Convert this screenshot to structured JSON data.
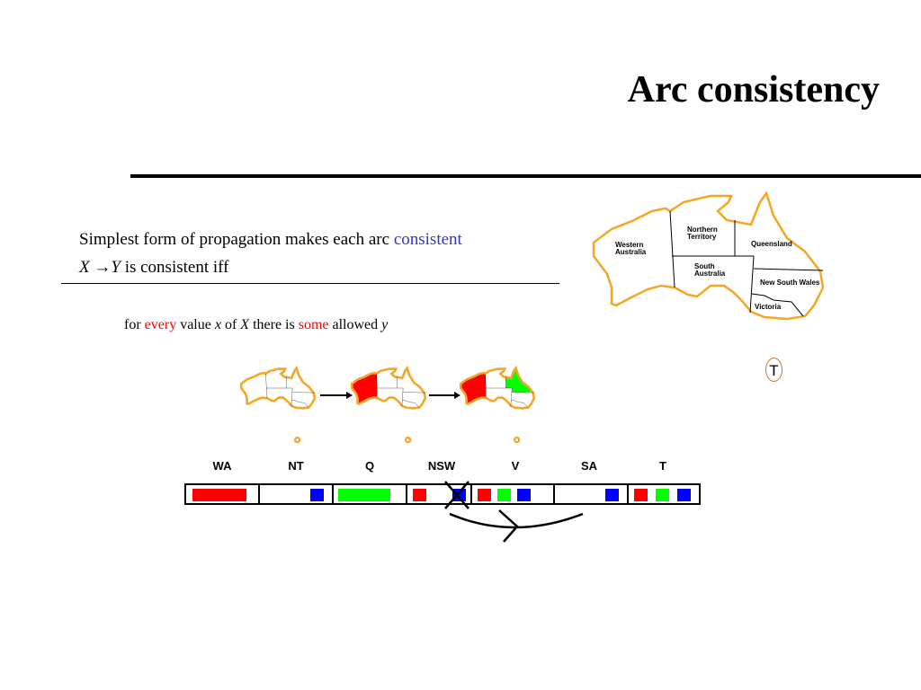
{
  "slide": {
    "title": "Arc consistency",
    "line1_prefix": "Simplest form of propagation makes each arc ",
    "line1_highlight": "consistent",
    "line2_x": "X",
    "line2_arrow": "→",
    "line2_y": "Y",
    "line2_rest": " is consistent iff",
    "line3": {
      "a": "for ",
      "every": "every",
      "b": " value ",
      "x": "x",
      "c": " of ",
      "X": "X",
      "d": " there is ",
      "some": "some",
      "e": " allowed ",
      "y": "y"
    }
  },
  "map": {
    "regions": [
      "Western Australia",
      "Northern Territory",
      "Queensland",
      "South Australia",
      "New South Wales",
      "Victoria"
    ],
    "wa1": "Western",
    "wa2": "Australia",
    "nt1": "Northern",
    "nt2": "Territory",
    "q": "Queensland",
    "sa1": "South",
    "sa2": "Australia",
    "nsw": "New South Wales",
    "v": "Victoria",
    "t": "T"
  },
  "colors": {
    "red": "#ff0000",
    "green": "#00ff00",
    "blue": "#0000ff",
    "outline": "#f5a623",
    "highlight": "#3333cc"
  },
  "domains": {
    "headers": [
      "WA",
      "NT",
      "Q",
      "NSW",
      "V",
      "SA",
      "T"
    ],
    "values": {
      "WA": [
        "red"
      ],
      "NT": [
        "blue"
      ],
      "Q": [
        "green"
      ],
      "NSW": [
        "red",
        "blue (crossed out)"
      ],
      "V": [
        "red",
        "green",
        "blue"
      ],
      "SA": [
        "blue"
      ],
      "T": [
        "red",
        "green",
        "blue"
      ]
    }
  }
}
